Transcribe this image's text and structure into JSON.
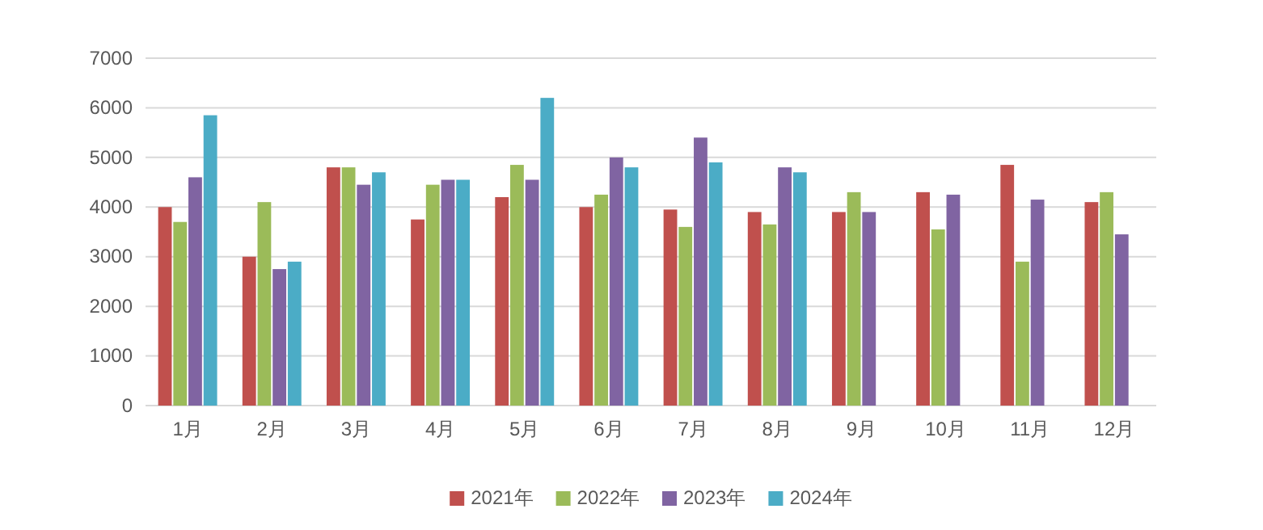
{
  "chart_data": {
    "type": "bar",
    "categories": [
      "1月",
      "2月",
      "3月",
      "4月",
      "5月",
      "6月",
      "7月",
      "8月",
      "9月",
      "10月",
      "11月",
      "12月"
    ],
    "series": [
      {
        "name": "2021年",
        "color": "#c0504d",
        "values": [
          4000,
          3000,
          4800,
          3750,
          4200,
          4000,
          3950,
          3900,
          3900,
          4300,
          4850,
          4100
        ]
      },
      {
        "name": "2022年",
        "color": "#9bbb59",
        "values": [
          3700,
          4100,
          4800,
          4450,
          4850,
          4250,
          3600,
          3650,
          4300,
          3550,
          2900,
          4300
        ]
      },
      {
        "name": "2023年",
        "color": "#8064a2",
        "values": [
          4600,
          2750,
          4450,
          4550,
          4550,
          5000,
          5400,
          4800,
          3900,
          4250,
          4150,
          3450
        ]
      },
      {
        "name": "2024年",
        "color": "#4bacc6",
        "values": [
          5850,
          2900,
          4700,
          4550,
          6200,
          4800,
          4900,
          4700,
          null,
          null,
          null,
          null
        ]
      }
    ],
    "ylim": [
      0,
      7000
    ],
    "yticks": [
      0,
      1000,
      2000,
      3000,
      4000,
      5000,
      6000,
      7000
    ],
    "grid": "y",
    "legend": "bottom"
  }
}
